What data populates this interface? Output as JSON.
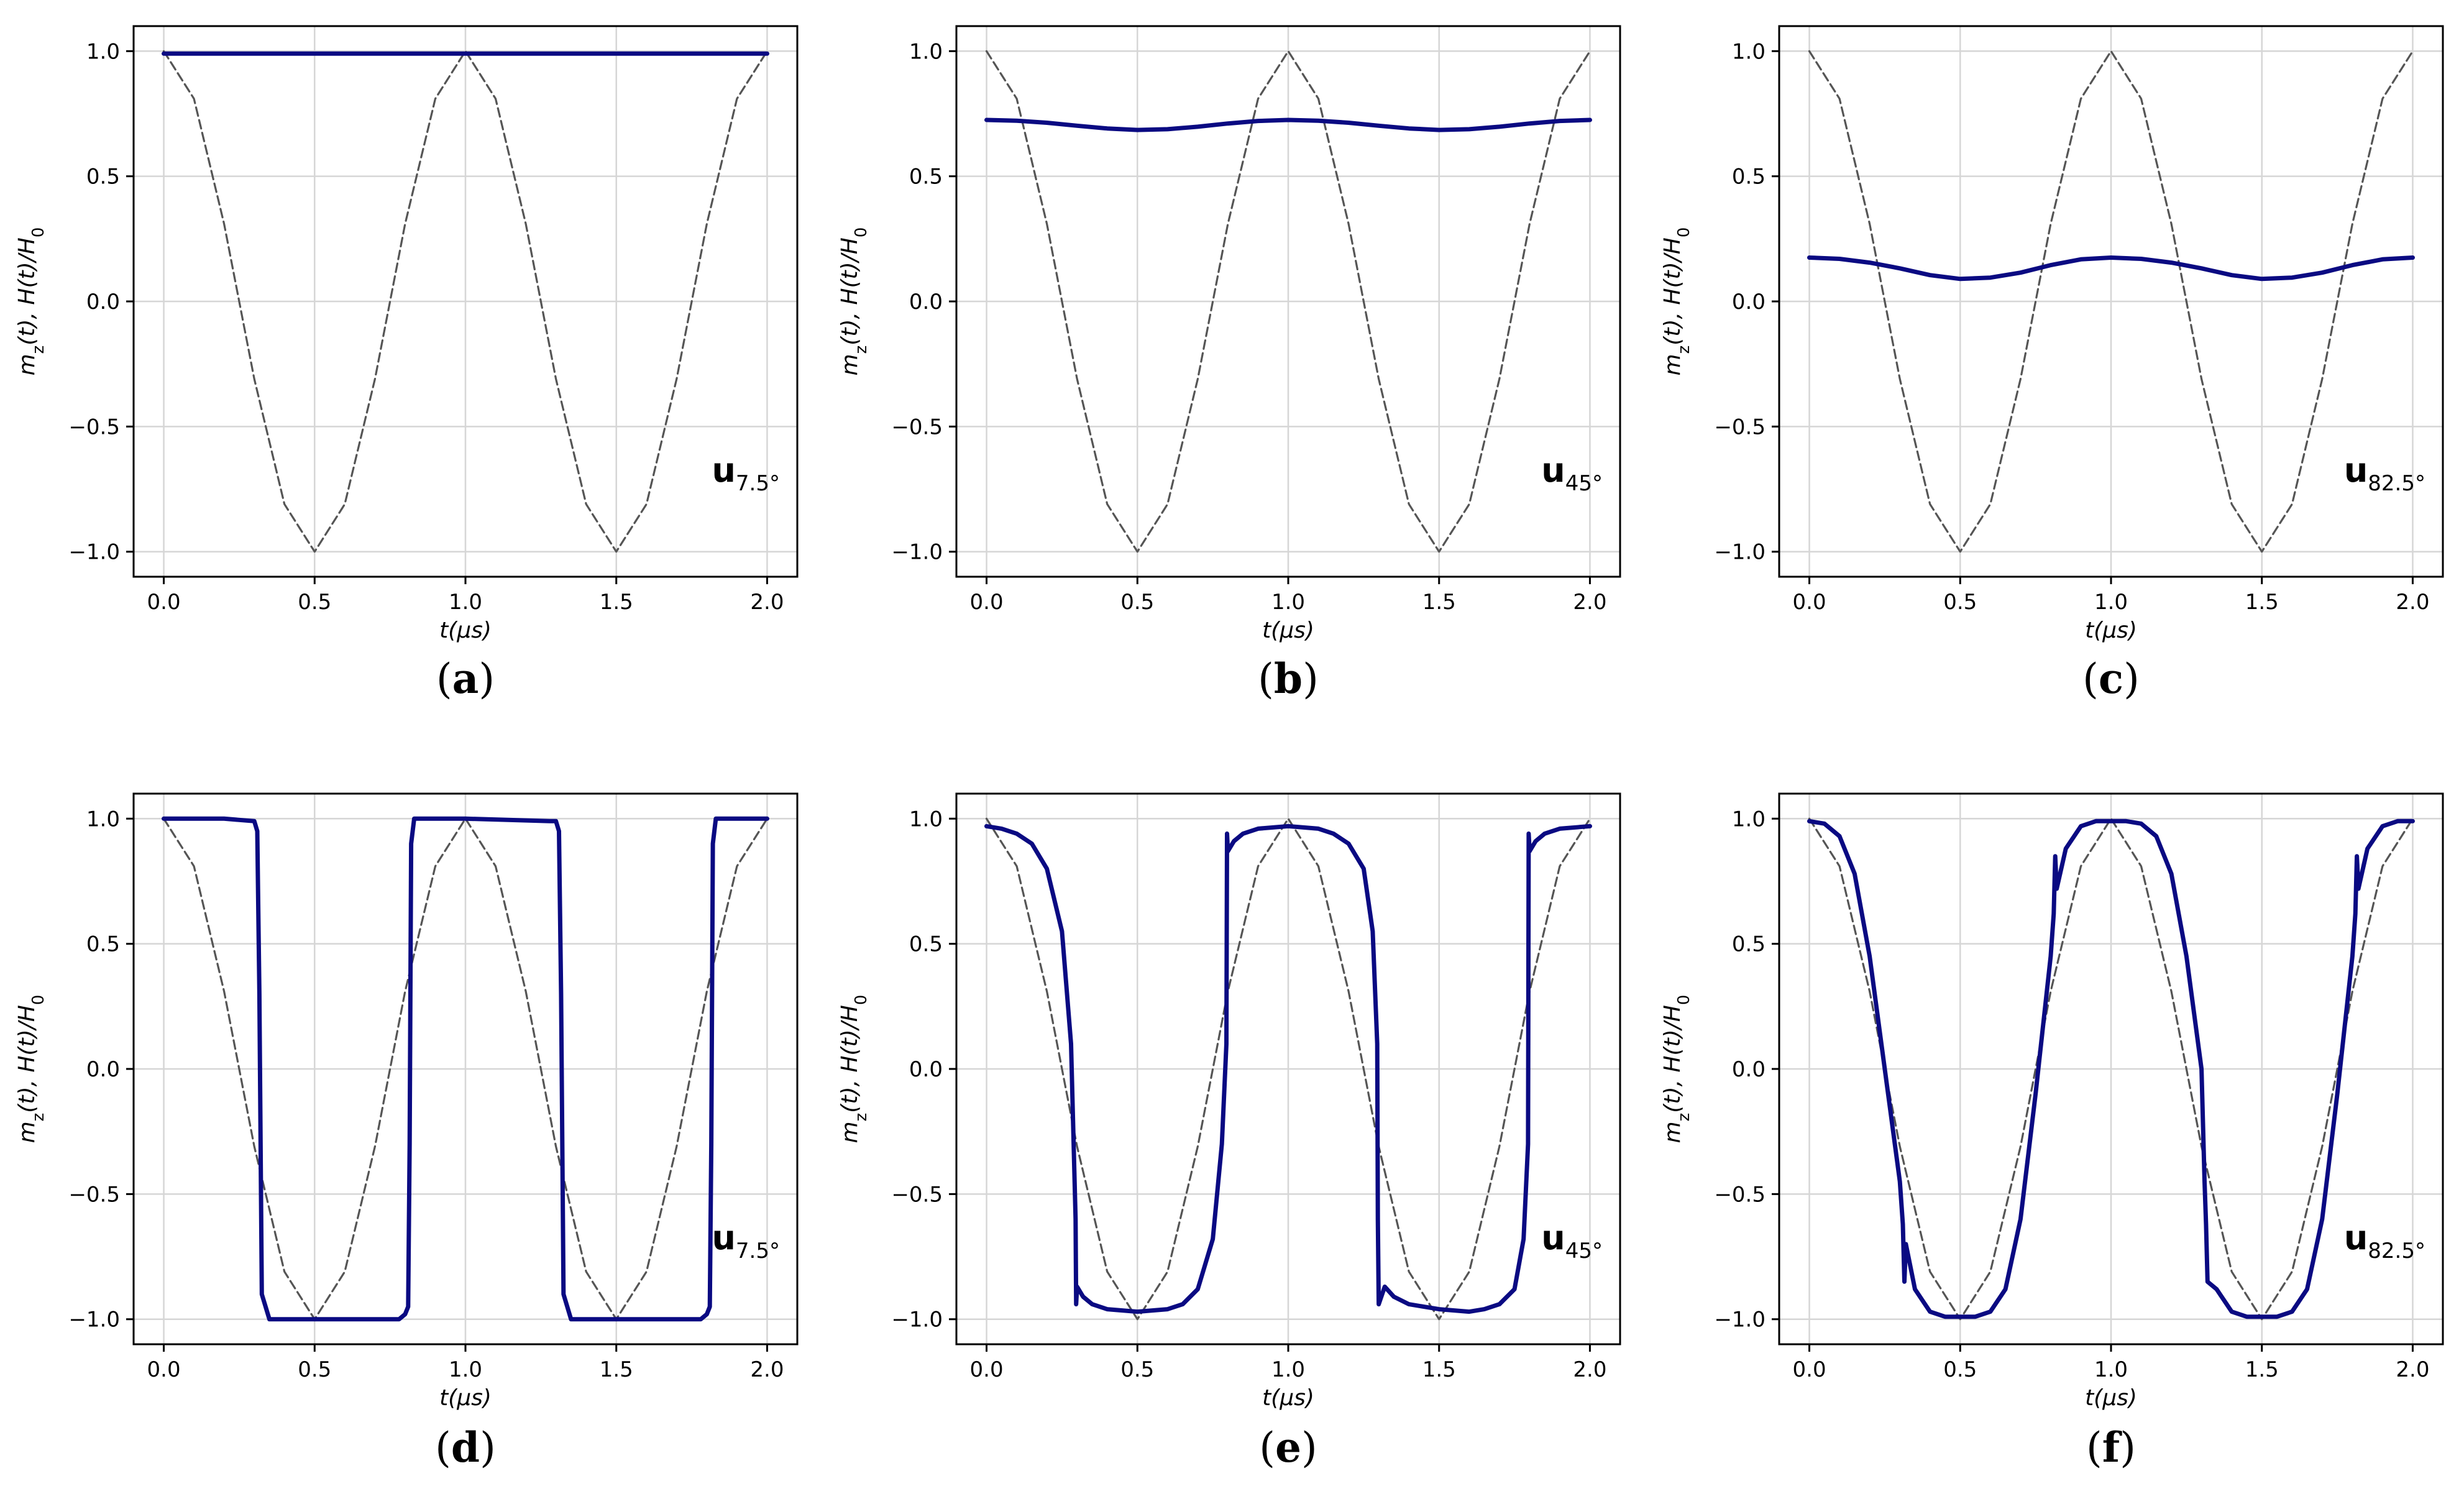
{
  "chart_data": [
    {
      "type": "line",
      "panel": "(a)",
      "panel_letter": "a",
      "xlabel": "t(μs)",
      "ylabel": "m_z(t), H(t)/H_0",
      "ylabel_parts": [
        "m",
        "z",
        "(t), H(t)/H",
        "0"
      ],
      "xlim": [
        -0.1,
        2.1
      ],
      "ylim": [
        -1.1,
        1.1
      ],
      "xticks": [
        0.0,
        0.5,
        1.0,
        1.5,
        2.0
      ],
      "xtick_labels": [
        "0.0",
        "0.5",
        "1.0",
        "1.5",
        "2.0"
      ],
      "yticks": [
        -1.0,
        -0.5,
        0.0,
        0.5,
        1.0
      ],
      "ytick_labels": [
        "−1.0",
        "−0.5",
        "0.0",
        "0.5",
        "1.0"
      ],
      "grid": true,
      "annotation": {
        "main": "u",
        "sub": "7.5°"
      },
      "series": [
        {
          "name": "H(t)/H_0",
          "style": "dashed",
          "color": "#555555",
          "x": [
            0.0,
            0.1,
            0.2,
            0.3,
            0.4,
            0.5,
            0.6,
            0.7,
            0.8,
            0.9,
            1.0,
            1.1,
            1.2,
            1.3,
            1.4,
            1.5,
            1.6,
            1.7,
            1.8,
            1.9,
            2.0
          ],
          "y": [
            1.0,
            0.81,
            0.31,
            -0.31,
            -0.81,
            -1.0,
            -0.81,
            -0.31,
            0.31,
            0.81,
            1.0,
            0.81,
            0.31,
            -0.31,
            -0.81,
            -1.0,
            -0.81,
            -0.31,
            0.31,
            0.81,
            1.0
          ]
        },
        {
          "name": "m_z(t)",
          "style": "solid",
          "color": "#0a0a82",
          "x": [
            0.0,
            0.5,
            1.0,
            1.5,
            2.0
          ],
          "y": [
            0.99,
            0.99,
            0.99,
            0.99,
            0.99
          ]
        }
      ]
    },
    {
      "type": "line",
      "panel": "(b)",
      "panel_letter": "b",
      "xlabel": "t(μs)",
      "ylabel": "m_z(t), H(t)/H_0",
      "ylabel_parts": [
        "m",
        "z",
        "(t), H(t)/H",
        "0"
      ],
      "xlim": [
        -0.1,
        2.1
      ],
      "ylim": [
        -1.1,
        1.1
      ],
      "xticks": [
        0.0,
        0.5,
        1.0,
        1.5,
        2.0
      ],
      "xtick_labels": [
        "0.0",
        "0.5",
        "1.0",
        "1.5",
        "2.0"
      ],
      "yticks": [
        -1.0,
        -0.5,
        0.0,
        0.5,
        1.0
      ],
      "ytick_labels": [
        "−1.0",
        "−0.5",
        "0.0",
        "0.5",
        "1.0"
      ],
      "grid": true,
      "annotation": {
        "main": "u",
        "sub": "45°"
      },
      "series": [
        {
          "name": "H(t)/H_0",
          "style": "dashed",
          "color": "#555555",
          "x": [
            0.0,
            0.1,
            0.2,
            0.3,
            0.4,
            0.5,
            0.6,
            0.7,
            0.8,
            0.9,
            1.0,
            1.1,
            1.2,
            1.3,
            1.4,
            1.5,
            1.6,
            1.7,
            1.8,
            1.9,
            2.0
          ],
          "y": [
            1.0,
            0.81,
            0.31,
            -0.31,
            -0.81,
            -1.0,
            -0.81,
            -0.31,
            0.31,
            0.81,
            1.0,
            0.81,
            0.31,
            -0.31,
            -0.81,
            -1.0,
            -0.81,
            -0.31,
            0.31,
            0.81,
            1.0
          ]
        },
        {
          "name": "m_z(t)",
          "style": "solid",
          "color": "#0a0a82",
          "x": [
            0.0,
            0.1,
            0.2,
            0.3,
            0.4,
            0.5,
            0.6,
            0.7,
            0.8,
            0.9,
            1.0,
            1.1,
            1.2,
            1.3,
            1.4,
            1.5,
            1.6,
            1.7,
            1.8,
            1.9,
            2.0
          ],
          "y": [
            0.725,
            0.722,
            0.714,
            0.702,
            0.691,
            0.685,
            0.688,
            0.698,
            0.711,
            0.721,
            0.725,
            0.722,
            0.714,
            0.702,
            0.691,
            0.685,
            0.688,
            0.698,
            0.711,
            0.721,
            0.725
          ]
        }
      ]
    },
    {
      "type": "line",
      "panel": "(c)",
      "panel_letter": "c",
      "xlabel": "t(μs)",
      "ylabel": "m_z(t), H(t)/H_0",
      "ylabel_parts": [
        "m",
        "z",
        "(t), H(t)/H",
        "0"
      ],
      "xlim": [
        -0.1,
        2.1
      ],
      "ylim": [
        -1.1,
        1.1
      ],
      "xticks": [
        0.0,
        0.5,
        1.0,
        1.5,
        2.0
      ],
      "xtick_labels": [
        "0.0",
        "0.5",
        "1.0",
        "1.5",
        "2.0"
      ],
      "yticks": [
        -1.0,
        -0.5,
        0.0,
        0.5,
        1.0
      ],
      "ytick_labels": [
        "−1.0",
        "−0.5",
        "0.0",
        "0.5",
        "1.0"
      ],
      "grid": true,
      "annotation": {
        "main": "u",
        "sub": "82.5°"
      },
      "series": [
        {
          "name": "H(t)/H_0",
          "style": "dashed",
          "color": "#555555",
          "x": [
            0.0,
            0.1,
            0.2,
            0.3,
            0.4,
            0.5,
            0.6,
            0.7,
            0.8,
            0.9,
            1.0,
            1.1,
            1.2,
            1.3,
            1.4,
            1.5,
            1.6,
            1.7,
            1.8,
            1.9,
            2.0
          ],
          "y": [
            1.0,
            0.81,
            0.31,
            -0.31,
            -0.81,
            -1.0,
            -0.81,
            -0.31,
            0.31,
            0.81,
            1.0,
            0.81,
            0.31,
            -0.31,
            -0.81,
            -1.0,
            -0.81,
            -0.31,
            0.31,
            0.81,
            1.0
          ]
        },
        {
          "name": "m_z(t)",
          "style": "solid",
          "color": "#0a0a82",
          "x": [
            0.0,
            0.1,
            0.2,
            0.3,
            0.4,
            0.5,
            0.6,
            0.7,
            0.8,
            0.9,
            1.0,
            1.1,
            1.2,
            1.3,
            1.4,
            1.5,
            1.6,
            1.7,
            1.8,
            1.9,
            2.0
          ],
          "y": [
            0.175,
            0.17,
            0.155,
            0.132,
            0.105,
            0.09,
            0.095,
            0.115,
            0.145,
            0.168,
            0.175,
            0.17,
            0.155,
            0.132,
            0.105,
            0.09,
            0.095,
            0.115,
            0.145,
            0.168,
            0.175
          ]
        }
      ]
    },
    {
      "type": "line",
      "panel": "(d)",
      "panel_letter": "d",
      "xlabel": "t(μs)",
      "ylabel": "m_z(t), H(t)/H_0",
      "ylabel_parts": [
        "m",
        "z",
        "(t), H(t)/H",
        "0"
      ],
      "xlim": [
        -0.1,
        2.1
      ],
      "ylim": [
        -1.1,
        1.1
      ],
      "xticks": [
        0.0,
        0.5,
        1.0,
        1.5,
        2.0
      ],
      "xtick_labels": [
        "0.0",
        "0.5",
        "1.0",
        "1.5",
        "2.0"
      ],
      "yticks": [
        -1.0,
        -0.5,
        0.0,
        0.5,
        1.0
      ],
      "ytick_labels": [
        "−1.0",
        "−0.5",
        "0.0",
        "0.5",
        "1.0"
      ],
      "grid": true,
      "annotation": {
        "main": "u",
        "sub": "7.5°"
      },
      "series": [
        {
          "name": "H(t)/H_0",
          "style": "dashed",
          "color": "#555555",
          "x": [
            0.0,
            0.1,
            0.2,
            0.3,
            0.4,
            0.5,
            0.6,
            0.7,
            0.8,
            0.9,
            1.0,
            1.1,
            1.2,
            1.3,
            1.4,
            1.5,
            1.6,
            1.7,
            1.8,
            1.9,
            2.0
          ],
          "y": [
            1.0,
            0.81,
            0.31,
            -0.31,
            -0.81,
            -1.0,
            -0.81,
            -0.31,
            0.31,
            0.81,
            1.0,
            0.81,
            0.31,
            -0.31,
            -0.81,
            -1.0,
            -0.81,
            -0.31,
            0.31,
            0.81,
            1.0
          ]
        },
        {
          "name": "m_z(t)",
          "style": "solid",
          "color": "#0a0a82",
          "x": [
            0.0,
            0.2,
            0.3,
            0.31,
            0.317,
            0.325,
            0.35,
            0.5,
            0.78,
            0.8,
            0.81,
            0.815,
            0.82,
            0.83,
            1.0,
            1.28,
            1.3,
            1.31,
            1.317,
            1.325,
            1.35,
            1.5,
            1.78,
            1.8,
            1.81,
            1.815,
            1.82,
            1.83,
            2.0
          ],
          "y": [
            1.0,
            1.0,
            0.99,
            0.95,
            0.3,
            -0.9,
            -1.0,
            -1.0,
            -1.0,
            -0.98,
            -0.95,
            -0.3,
            0.9,
            1.0,
            1.0,
            0.99,
            0.99,
            0.95,
            0.3,
            -0.9,
            -1.0,
            -1.0,
            -1.0,
            -0.98,
            -0.95,
            -0.3,
            0.9,
            1.0,
            1.0
          ]
        }
      ]
    },
    {
      "type": "line",
      "panel": "(e)",
      "panel_letter": "e",
      "xlabel": "t(μs)",
      "ylabel": "m_z(t), H(t)/H_0",
      "ylabel_parts": [
        "m",
        "z",
        "(t), H(t)/H",
        "0"
      ],
      "xlim": [
        -0.1,
        2.1
      ],
      "ylim": [
        -1.1,
        1.1
      ],
      "xticks": [
        0.0,
        0.5,
        1.0,
        1.5,
        2.0
      ],
      "xtick_labels": [
        "0.0",
        "0.5",
        "1.0",
        "1.5",
        "2.0"
      ],
      "yticks": [
        -1.0,
        -0.5,
        0.0,
        0.5,
        1.0
      ],
      "ytick_labels": [
        "−1.0",
        "−0.5",
        "0.0",
        "0.5",
        "1.0"
      ],
      "grid": true,
      "annotation": {
        "main": "u",
        "sub": "45°"
      },
      "series": [
        {
          "name": "H(t)/H_0",
          "style": "dashed",
          "color": "#555555",
          "x": [
            0.0,
            0.1,
            0.2,
            0.3,
            0.4,
            0.5,
            0.6,
            0.7,
            0.8,
            0.9,
            1.0,
            1.1,
            1.2,
            1.3,
            1.4,
            1.5,
            1.6,
            1.7,
            1.8,
            1.9,
            2.0
          ],
          "y": [
            1.0,
            0.81,
            0.31,
            -0.31,
            -0.81,
            -1.0,
            -0.81,
            -0.31,
            0.31,
            0.81,
            1.0,
            0.81,
            0.31,
            -0.31,
            -0.81,
            -1.0,
            -0.81,
            -0.31,
            0.31,
            0.81,
            1.0
          ]
        },
        {
          "name": "m_z(t)",
          "style": "solid",
          "color": "#0a0a82",
          "x": [
            0.0,
            0.05,
            0.1,
            0.15,
            0.2,
            0.25,
            0.28,
            0.295,
            0.297,
            0.3,
            0.32,
            0.35,
            0.4,
            0.5,
            0.6,
            0.65,
            0.7,
            0.75,
            0.78,
            0.795,
            0.797,
            0.8,
            0.82,
            0.85,
            0.9,
            1.0,
            1.1,
            1.15,
            1.2,
            1.25,
            1.28,
            1.295,
            1.297,
            1.3,
            1.32,
            1.35,
            1.4,
            1.5,
            1.6,
            1.65,
            1.7,
            1.75,
            1.78,
            1.795,
            1.797,
            1.8,
            1.82,
            1.85,
            1.9,
            2.0
          ],
          "y": [
            0.97,
            0.96,
            0.94,
            0.9,
            0.8,
            0.55,
            0.1,
            -0.6,
            -0.94,
            -0.87,
            -0.91,
            -0.94,
            -0.96,
            -0.97,
            -0.96,
            -0.94,
            -0.88,
            -0.68,
            -0.3,
            0.1,
            0.94,
            0.87,
            0.91,
            0.94,
            0.96,
            0.97,
            0.96,
            0.94,
            0.9,
            0.8,
            0.55,
            0.1,
            -0.6,
            -0.94,
            -0.87,
            -0.91,
            -0.94,
            -0.96,
            -0.97,
            -0.96,
            -0.94,
            -0.88,
            -0.68,
            -0.3,
            0.94,
            0.87,
            0.91,
            0.94,
            0.96,
            0.97
          ]
        }
      ]
    },
    {
      "type": "line",
      "panel": "(f)",
      "panel_letter": "f",
      "xlabel": "t(μs)",
      "ylabel": "m_z(t), H(t)/H_0",
      "ylabel_parts": [
        "m",
        "z",
        "(t), H(t)/H",
        "0"
      ],
      "xlim": [
        -0.1,
        2.1
      ],
      "ylim": [
        -1.1,
        1.1
      ],
      "xticks": [
        0.0,
        0.5,
        1.0,
        1.5,
        2.0
      ],
      "xtick_labels": [
        "0.0",
        "0.5",
        "1.0",
        "1.5",
        "2.0"
      ],
      "yticks": [
        -1.0,
        -0.5,
        0.0,
        0.5,
        1.0
      ],
      "ytick_labels": [
        "−1.0",
        "−0.5",
        "0.0",
        "0.5",
        "1.0"
      ],
      "grid": true,
      "annotation": {
        "main": "u",
        "sub": "82.5°"
      },
      "series": [
        {
          "name": "H(t)/H_0",
          "style": "dashed",
          "color": "#555555",
          "x": [
            0.0,
            0.1,
            0.2,
            0.3,
            0.4,
            0.5,
            0.6,
            0.7,
            0.8,
            0.9,
            1.0,
            1.1,
            1.2,
            1.3,
            1.4,
            1.5,
            1.6,
            1.7,
            1.8,
            1.9,
            2.0
          ],
          "y": [
            1.0,
            0.81,
            0.31,
            -0.31,
            -0.81,
            -1.0,
            -0.81,
            -0.31,
            0.31,
            0.81,
            1.0,
            0.81,
            0.31,
            -0.31,
            -0.81,
            -1.0,
            -0.81,
            -0.31,
            0.31,
            0.81,
            1.0
          ]
        },
        {
          "name": "m_z(t)",
          "style": "solid",
          "color": "#0a0a82",
          "x": [
            0.0,
            0.05,
            0.1,
            0.15,
            0.2,
            0.25,
            0.3,
            0.31,
            0.315,
            0.32,
            0.35,
            0.4,
            0.45,
            0.5,
            0.55,
            0.6,
            0.65,
            0.7,
            0.75,
            0.8,
            0.81,
            0.815,
            0.82,
            0.85,
            0.9,
            0.95,
            1.0,
            1.05,
            1.1,
            1.15,
            1.2,
            1.25,
            1.3,
            1.31,
            1.315,
            1.32,
            1.35,
            1.4,
            1.45,
            1.5,
            1.55,
            1.6,
            1.65,
            1.7,
            1.75,
            1.8,
            1.81,
            1.815,
            1.82,
            1.85,
            1.9,
            1.95,
            2.0
          ],
          "y": [
            0.99,
            0.98,
            0.93,
            0.78,
            0.45,
            0.0,
            -0.45,
            -0.62,
            -0.85,
            -0.7,
            -0.88,
            -0.97,
            -0.99,
            -0.99,
            -0.99,
            -0.97,
            -0.88,
            -0.6,
            -0.1,
            0.45,
            0.62,
            0.85,
            0.72,
            0.88,
            0.97,
            0.99,
            0.99,
            0.99,
            0.98,
            0.93,
            0.78,
            0.45,
            0.0,
            -0.45,
            -0.62,
            -0.85,
            -0.88,
            -0.97,
            -0.99,
            -0.99,
            -0.99,
            -0.97,
            -0.88,
            -0.6,
            -0.1,
            0.45,
            0.62,
            0.85,
            0.72,
            0.88,
            0.97,
            0.99,
            0.99
          ]
        }
      ]
    }
  ]
}
